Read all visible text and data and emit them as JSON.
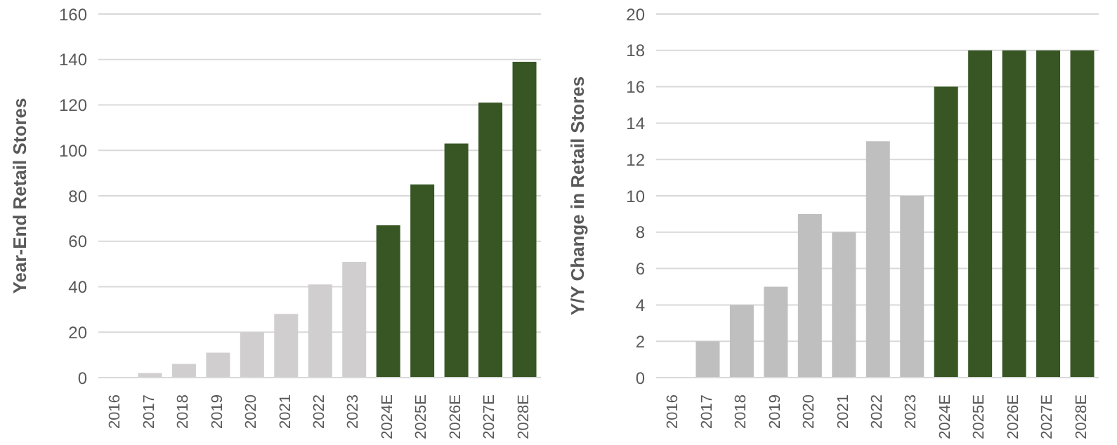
{
  "chart_data": [
    {
      "type": "bar",
      "ylabel": "Year-End Retail Stores",
      "categories": [
        "2016",
        "2017",
        "2018",
        "2019",
        "2020",
        "2021",
        "2022",
        "2023",
        "2024E",
        "2025E",
        "2026E",
        "2027E",
        "2028E"
      ],
      "values": [
        0,
        2,
        6,
        11,
        20,
        28,
        41,
        51,
        67,
        85,
        103,
        121,
        139
      ],
      "colors": [
        "#d0cece",
        "#d0cece",
        "#d0cece",
        "#d0cece",
        "#d0cece",
        "#d0cece",
        "#d0cece",
        "#d0cece",
        "#375623",
        "#375623",
        "#375623",
        "#375623",
        "#375623"
      ],
      "ylim": [
        0,
        160
      ],
      "yticks": [
        0,
        20,
        40,
        60,
        80,
        100,
        120,
        140,
        160
      ],
      "grid": "y",
      "legend": false
    },
    {
      "type": "bar",
      "ylabel": "Y/Y Change in Retail Stores",
      "categories": [
        "2016",
        "2017",
        "2018",
        "2019",
        "2020",
        "2021",
        "2022",
        "2023",
        "2024E",
        "2025E",
        "2026E",
        "2027E",
        "2028E"
      ],
      "values": [
        0,
        2,
        4,
        5,
        9,
        8,
        13,
        10,
        16,
        18,
        18,
        18,
        18
      ],
      "colors": [
        "#bfbfbf",
        "#bfbfbf",
        "#bfbfbf",
        "#bfbfbf",
        "#bfbfbf",
        "#bfbfbf",
        "#bfbfbf",
        "#bfbfbf",
        "#375623",
        "#375623",
        "#375623",
        "#375623",
        "#375623"
      ],
      "ylim": [
        0,
        20
      ],
      "yticks": [
        0,
        2,
        4,
        6,
        8,
        10,
        12,
        14,
        16,
        18,
        20
      ],
      "grid": "y",
      "legend": false
    }
  ]
}
